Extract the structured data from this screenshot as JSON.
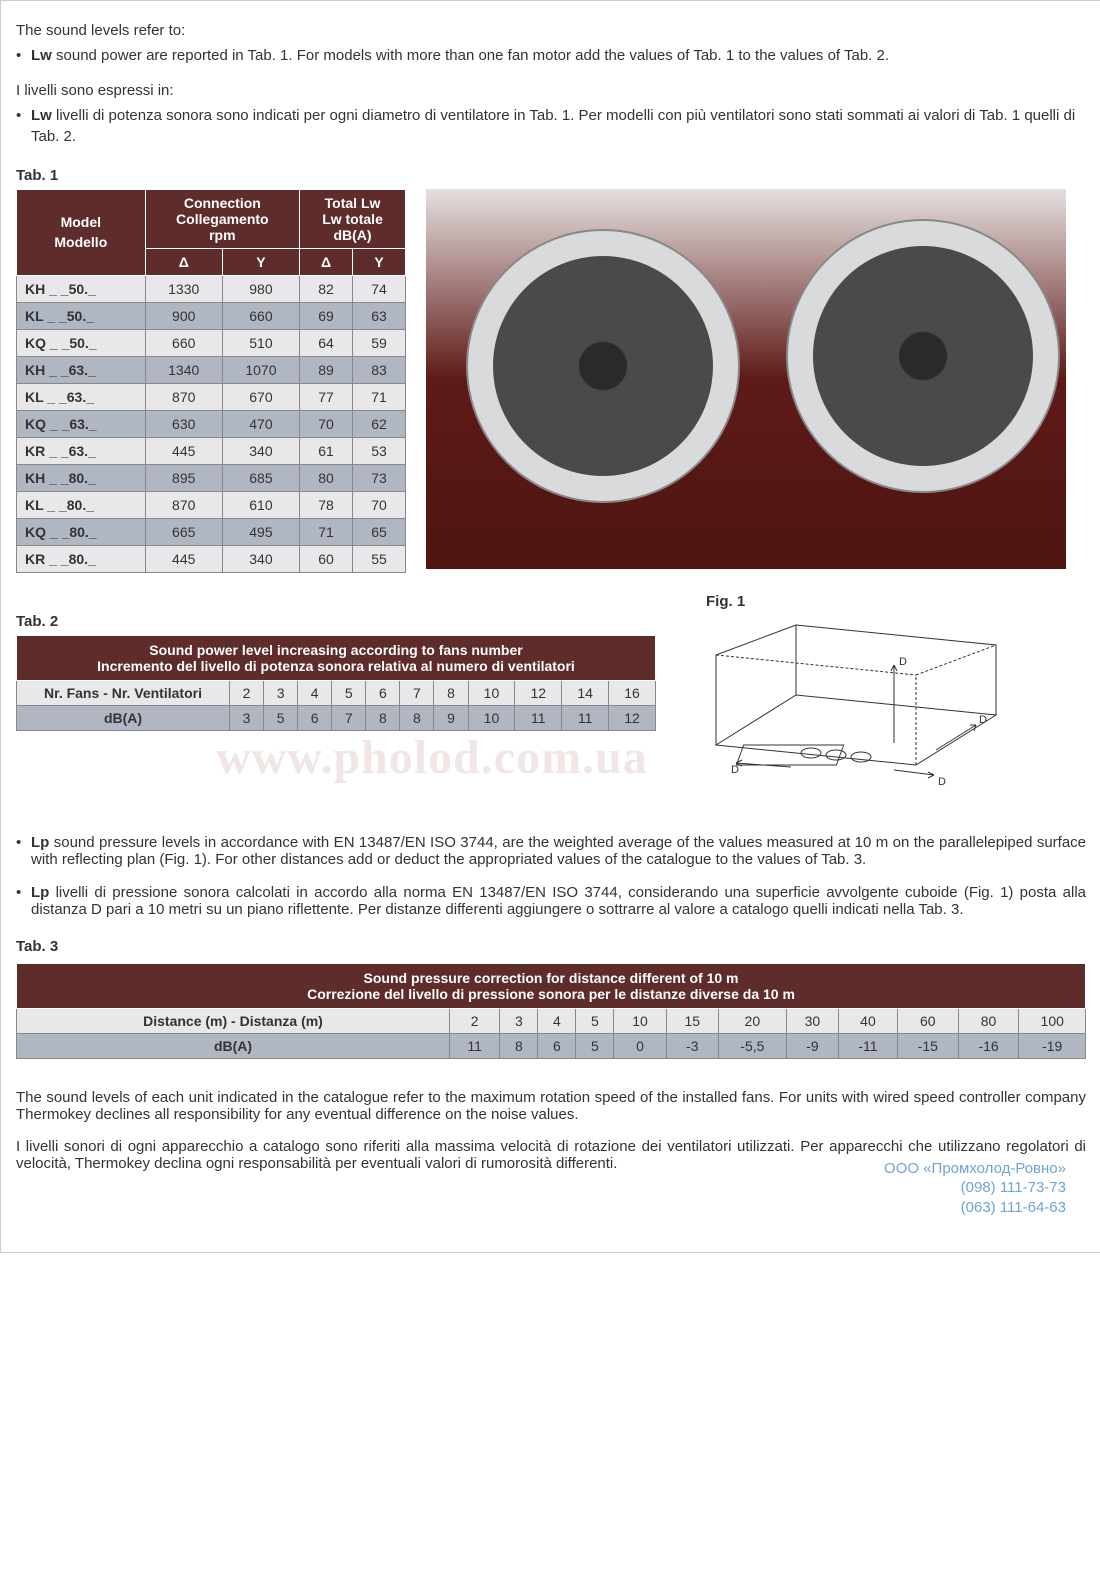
{
  "intro": {
    "en_title": "The sound levels refer to:",
    "en_bullet": "Lw sound power are reported in Tab. 1. For models with more than one fan motor add the values of Tab. 1 to the values of Tab. 2.",
    "it_title": "I livelli sono espressi in:",
    "it_bullet": "Lw livelli di potenza sonora sono indicati per ogni diametro di ventilatore in Tab. 1. Per modelli con più ventilatori sono stati sommati ai valori di Tab. 1 quelli di Tab. 2."
  },
  "tab1": {
    "label": "Tab. 1",
    "h_model": "Model Modello",
    "h_conn": "Connection Collegamento rpm",
    "h_lw": "Total Lw Lw totale dB(A)",
    "delta": "Δ",
    "wye": "Y",
    "rows": [
      {
        "m": "KH _ _50._",
        "cd": "1330",
        "cy": "980",
        "ld": "82",
        "ly": "74",
        "alt": false
      },
      {
        "m": "KL _ _50._",
        "cd": "900",
        "cy": "660",
        "ld": "69",
        "ly": "63",
        "alt": true
      },
      {
        "m": "KQ _ _50._",
        "cd": "660",
        "cy": "510",
        "ld": "64",
        "ly": "59",
        "alt": false
      },
      {
        "m": "KH _ _63._",
        "cd": "1340",
        "cy": "1070",
        "ld": "89",
        "ly": "83",
        "alt": true
      },
      {
        "m": "KL _ _63._",
        "cd": "870",
        "cy": "670",
        "ld": "77",
        "ly": "71",
        "alt": false
      },
      {
        "m": "KQ _ _63._",
        "cd": "630",
        "cy": "470",
        "ld": "70",
        "ly": "62",
        "alt": true
      },
      {
        "m": "KR _ _63._",
        "cd": "445",
        "cy": "340",
        "ld": "61",
        "ly": "53",
        "alt": false
      },
      {
        "m": "KH _ _80._",
        "cd": "895",
        "cy": "685",
        "ld": "80",
        "ly": "73",
        "alt": true
      },
      {
        "m": "KL _ _80._",
        "cd": "870",
        "cy": "610",
        "ld": "78",
        "ly": "70",
        "alt": false
      },
      {
        "m": "KQ _ _80._",
        "cd": "665",
        "cy": "495",
        "ld": "71",
        "ly": "65",
        "alt": true
      },
      {
        "m": "KR _ _80._",
        "cd": "445",
        "cy": "340",
        "ld": "60",
        "ly": "55",
        "alt": false
      }
    ]
  },
  "tab2": {
    "label": "Tab. 2",
    "title_en": "Sound power level increasing according to fans number",
    "title_it": "Incremento del livello di potenza sonora relativa al numero di ventilatori",
    "row1_label": "Nr. Fans - Nr. Ventilatori",
    "row2_label": "dB(A)",
    "fans": [
      "2",
      "3",
      "4",
      "5",
      "6",
      "7",
      "8",
      "10",
      "12",
      "14",
      "16"
    ],
    "db": [
      "3",
      "5",
      "6",
      "7",
      "8",
      "8",
      "9",
      "10",
      "11",
      "11",
      "12"
    ]
  },
  "fig1_label": "Fig. 1",
  "mid_text": {
    "en": "Lp sound pressure levels in accordance with EN 13487/EN ISO 3744, are the weighted average of the values measured at 10 m on the parallelepiped surface with reflecting plan (Fig. 1). For other distances add or deduct the appropriated values of the catalogue to the values of Tab. 3.",
    "it": "Lp livelli di pressione sonora calcolati in accordo alla norma EN 13487/EN ISO 3744, considerando una superficie avvolgente cuboide (Fig. 1) posta alla distanza D pari a 10 metri su un piano riflettente. Per distanze differenti aggiungere o sottrarre al valore a catalogo quelli indicati nella Tab. 3."
  },
  "tab3": {
    "label": "Tab. 3",
    "title_en": "Sound pressure correction for distance different of 10 m",
    "title_it": "Correzione del livello di pressione sonora per le distanze diverse da 10 m",
    "row1_label": "Distance (m) - Distanza (m)",
    "row2_label": "dB(A)",
    "dist": [
      "2",
      "3",
      "4",
      "5",
      "10",
      "15",
      "20",
      "30",
      "40",
      "60",
      "80",
      "100"
    ],
    "db": [
      "11",
      "8",
      "6",
      "5",
      "0",
      "-3",
      "-5,5",
      "-9",
      "-11",
      "-15",
      "-16",
      "-19"
    ]
  },
  "footer": {
    "en": "The sound levels of each unit indicated in the catalogue refer to the maximum rotation speed of the installed fans. For units with wired speed controller company Thermokey declines all responsibility for any eventual difference on the noise values.",
    "it": "I livelli sonori di ogni apparecchio a catalogo sono riferiti alla massima velocità di rotazione dei ventilatori utilizzati. Per apparecchi che utilizzano regolatori di velocità, Thermokey declina ogni responsabilità per eventuali valori di rumorosità differenti."
  },
  "watermark": "www.pholod.com.ua",
  "contact": {
    "name": "ООО «Промхолод-Ровно»",
    "phone1": "(098) 111-73-73",
    "phone2": "(063) 111-64-63"
  },
  "colors": {
    "header_bg": "#5d2c2b",
    "alt_bg": "#b0b7c3",
    "row_bg": "#e8e8ea"
  }
}
